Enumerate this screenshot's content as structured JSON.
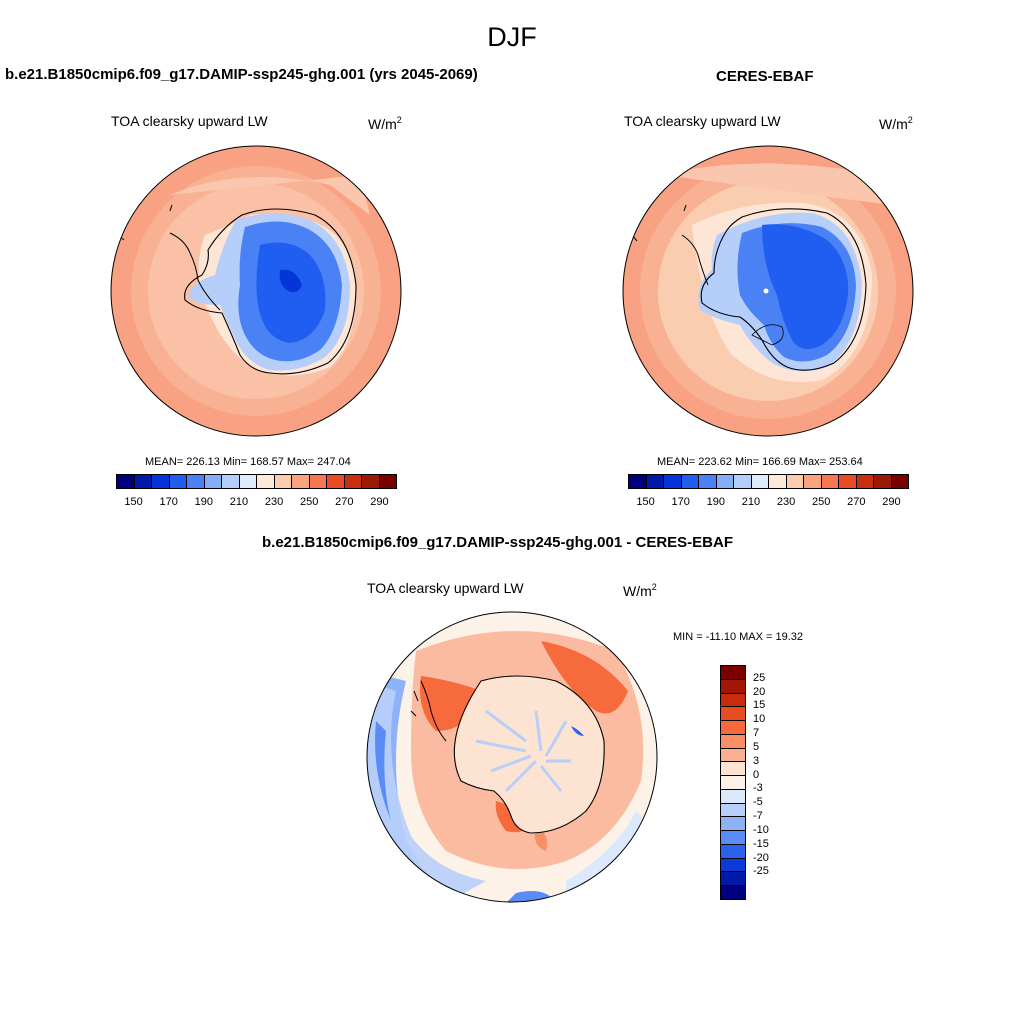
{
  "title": "DJF",
  "panels": {
    "model": {
      "title": "b.e21.B1850cmip6.f09_g17.DAMIP-ssp245-ghg.001 (yrs 2045-2069)",
      "variable": "TOA clearsky upward LW",
      "units_base": "W/m",
      "units_exp": "2",
      "stats": "MEAN= 226.13  Min= 168.57  Max= 247.04"
    },
    "obs": {
      "title": "CERES-EBAF",
      "variable": "TOA clearsky upward LW",
      "units_base": "W/m",
      "units_exp": "2",
      "stats": "MEAN= 223.62  Min= 166.69  Max= 253.64"
    },
    "diff": {
      "title": "b.e21.B1850cmip6.f09_g17.DAMIP-ssp245-ghg.001 - CERES-EBAF",
      "variable": "TOA clearsky upward LW",
      "units_base": "W/m",
      "units_exp": "2",
      "stats": "MIN = -11.10 MAX =  19.32"
    }
  },
  "colorbar_main": {
    "tick_labels": [
      "150",
      "170",
      "190",
      "210",
      "230",
      "250",
      "270",
      "290"
    ],
    "colors": [
      "#00007f",
      "#0018a8",
      "#0535d8",
      "#1f5ef0",
      "#4a82f5",
      "#86aef8",
      "#b5cdfa",
      "#dfeafd",
      "#fde9d8",
      "#fbcdb0",
      "#f9a380",
      "#f67750",
      "#e84c22",
      "#c6300e",
      "#9c1a05",
      "#7a0000"
    ]
  },
  "colorbar_diff": {
    "tick_labels": [
      "25",
      "20",
      "15",
      "10",
      "7",
      "5",
      "3",
      "0",
      "-3",
      "-5",
      "-7",
      "-10",
      "-15",
      "-20",
      "-25"
    ],
    "colors": [
      "#7a0000",
      "#a21605",
      "#c92c0b",
      "#e84c22",
      "#f66a3c",
      "#f88f67",
      "#fab193",
      "#fde3d1",
      "#fdf2e8",
      "#dce8fc",
      "#b8cffa",
      "#8db2f7",
      "#5b8bf4",
      "#2a62ec",
      "#0a3ad8",
      "#001aa8",
      "#00007f"
    ]
  }
}
